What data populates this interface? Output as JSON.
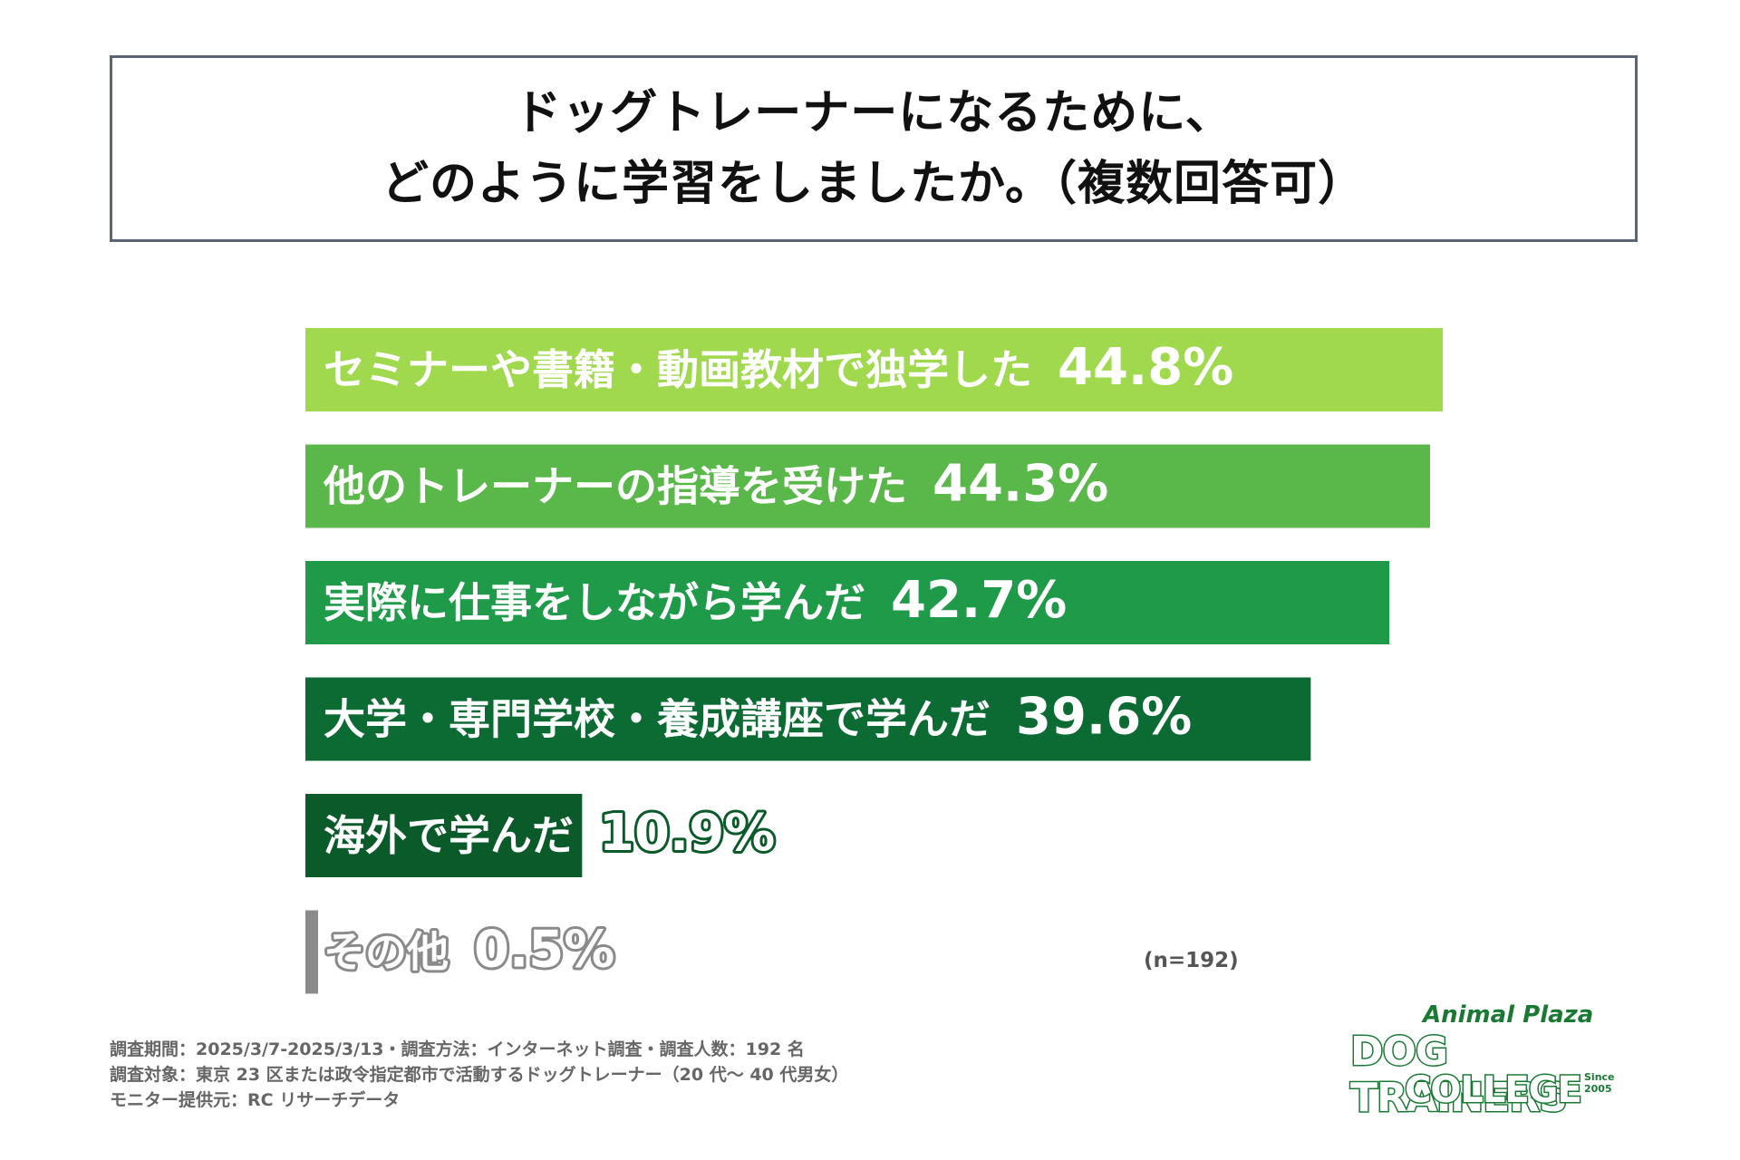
{
  "title": {
    "line1": "ドッグトレーナーになるために、",
    "line2": "どのように学習をしましたか。（複数回答可）"
  },
  "chart_data": {
    "type": "bar",
    "orientation": "horizontal",
    "categories": [
      "セミナーや書籍・動画教材で独学した",
      "他のトレーナーの指導を受けた",
      "実際に仕事をしながら学んだ",
      "大学・専門学校・養成講座で学んだ",
      "海外で学んだ",
      "その他"
    ],
    "values": [
      44.8,
      44.3,
      42.7,
      39.6,
      10.9,
      0.5
    ],
    "value_labels": [
      "44.8%",
      "44.3%",
      "42.7%",
      "39.6%",
      "10.9%",
      "0.5%"
    ],
    "colors": [
      "#a0d84e",
      "#5ab84a",
      "#1e9a48",
      "#0b6b33",
      "#0a5a2a",
      "#8a8a8a"
    ],
    "xlim": [
      0,
      44.8
    ],
    "grid": false
  },
  "sample_note": "(n=192)",
  "footnotes": [
    "調査期間：2025/3/7-2025/3/13・調査方法：インターネット調査・調査人数：192 名",
    "調査対象：東京 23 区または政令指定都市で活動するドッグトレーナー（20 代〜 40 代男女）",
    "モニター提供元：RC リサーチデータ"
  ],
  "logo": {
    "line1": "Animal Plaza",
    "line2": "DOG TRAINERS",
    "line3": "COLLEGE",
    "since": "Since 2005"
  }
}
